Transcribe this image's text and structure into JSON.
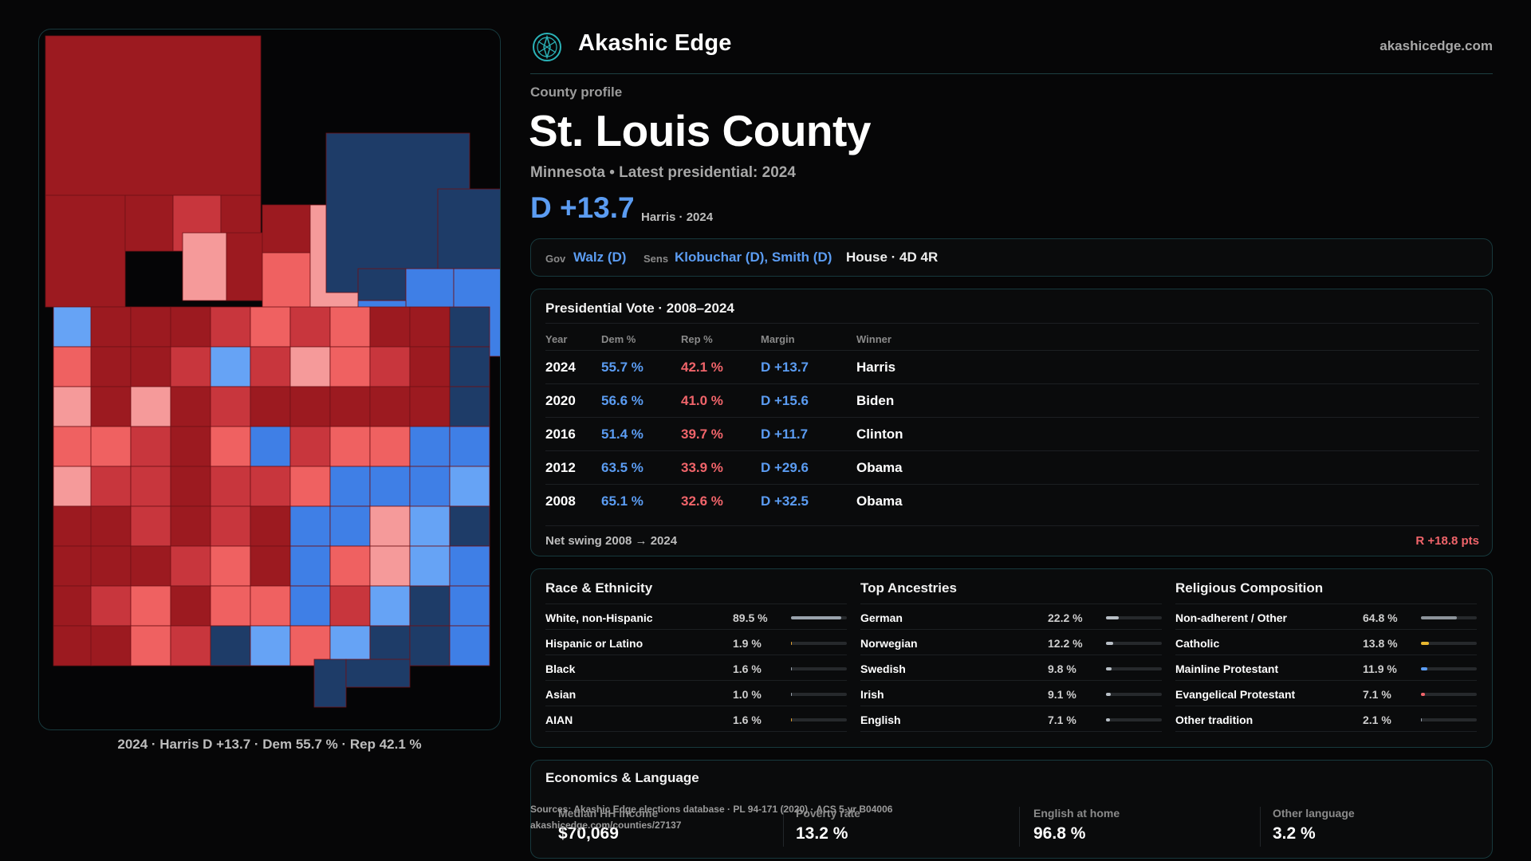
{
  "brand": {
    "name": "Akashic Edge",
    "url": "akashicedge.com",
    "logo_icon": "compass-icon"
  },
  "profile": {
    "eyebrow": "County profile",
    "title": "St. Louis County",
    "subtitle": "Minnesota • Latest presidential: 2024",
    "margin": "D +13.7",
    "margin_note": "Harris · 2024"
  },
  "officials": {
    "gov_label": "Gov",
    "gov": "Walz (D)",
    "sens_label": "Sens",
    "sens": "Klobuchar (D), Smith (D)",
    "house": "House · 4D 4R"
  },
  "presidential": {
    "title": "Presidential Vote · 2008–2024",
    "columns": [
      "Year",
      "Dem %",
      "Rep %",
      "Margin",
      "Winner"
    ],
    "rows": [
      {
        "year": "2024",
        "dem": "55.7 %",
        "rep": "42.1 %",
        "margin": "D +13.7",
        "winner": "Harris"
      },
      {
        "year": "2020",
        "dem": "56.6 %",
        "rep": "41.0 %",
        "margin": "D +15.6",
        "winner": "Biden"
      },
      {
        "year": "2016",
        "dem": "51.4 %",
        "rep": "39.7 %",
        "margin": "D +11.7",
        "winner": "Clinton"
      },
      {
        "year": "2012",
        "dem": "63.5 %",
        "rep": "33.9 %",
        "margin": "D +29.6",
        "winner": "Obama"
      },
      {
        "year": "2008",
        "dem": "65.1 %",
        "rep": "32.6 %",
        "margin": "D +32.5",
        "winner": "Obama"
      }
    ],
    "swing_label": "Net swing 2008 → 2024",
    "swing_value": "R +18.8 pts"
  },
  "demographics": [
    {
      "title": "Race & Ethnicity",
      "rows": [
        {
          "label": "White, non-Hispanic",
          "value": "89.5 %",
          "pct": 89.5,
          "color": "#9aa3ad"
        },
        {
          "label": "Hispanic or Latino",
          "value": "1.9 %",
          "pct": 1.9,
          "color": "#e0a030"
        },
        {
          "label": "Black",
          "value": "1.6 %",
          "pct": 1.6,
          "color": "#9aa3ad"
        },
        {
          "label": "Asian",
          "value": "1.0 %",
          "pct": 1.0,
          "color": "#9aa3ad"
        },
        {
          "label": "AIAN",
          "value": "1.6 %",
          "pct": 1.6,
          "color": "#e0a030"
        }
      ]
    },
    {
      "title": "Top Ancestries",
      "rows": [
        {
          "label": "German",
          "value": "22.2 %",
          "pct": 22.2,
          "color": "#b8bfc6"
        },
        {
          "label": "Norwegian",
          "value": "12.2 %",
          "pct": 12.2,
          "color": "#b8bfc6"
        },
        {
          "label": "Swedish",
          "value": "9.8 %",
          "pct": 9.8,
          "color": "#b8bfc6"
        },
        {
          "label": "Irish",
          "value": "9.1 %",
          "pct": 9.1,
          "color": "#b8bfc6"
        },
        {
          "label": "English",
          "value": "7.1 %",
          "pct": 7.1,
          "color": "#b8bfc6"
        }
      ]
    },
    {
      "title": "Religious Composition",
      "rows": [
        {
          "label": "Non-adherent / Other",
          "value": "64.8 %",
          "pct": 64.8,
          "color": "#8d949b"
        },
        {
          "label": "Catholic",
          "value": "13.8 %",
          "pct": 13.8,
          "color": "#e8b830"
        },
        {
          "label": "Mainline Protestant",
          "value": "11.9 %",
          "pct": 11.9,
          "color": "#5b9cf2"
        },
        {
          "label": "Evangelical Protestant",
          "value": "7.1 %",
          "pct": 7.1,
          "color": "#f0646a"
        },
        {
          "label": "Other tradition",
          "value": "2.1 %",
          "pct": 2.1,
          "color": "#9aa3ad"
        }
      ]
    }
  ],
  "economics": {
    "title": "Economics & Language",
    "cells": [
      {
        "label": "Median HH income",
        "value": "$70,069"
      },
      {
        "label": "Poverty rate",
        "value": "13.2 %"
      },
      {
        "label": "English at home",
        "value": "96.8 %"
      },
      {
        "label": "Other language",
        "value": "3.2 %"
      }
    ]
  },
  "sources": {
    "line1": "Sources: Akashic Edge elections database · PL 94-171 (2020) · ACS 5-yr B04006",
    "line2": "akashicedge.com/counties/27137"
  },
  "map": {
    "caption": "2024 · Harris D +13.7 · Dem 55.7 % · Rep 42.1 %",
    "palette": {
      "rep_strong": "#9c1a20",
      "rep_mid": "#c8363d",
      "rep_light": "#ef6161",
      "rep_pale": "#f59a9a",
      "dem_strong": "#1e3c68",
      "dem_mid": "#3f7fe6",
      "dem_light": "#66a3f5"
    }
  }
}
